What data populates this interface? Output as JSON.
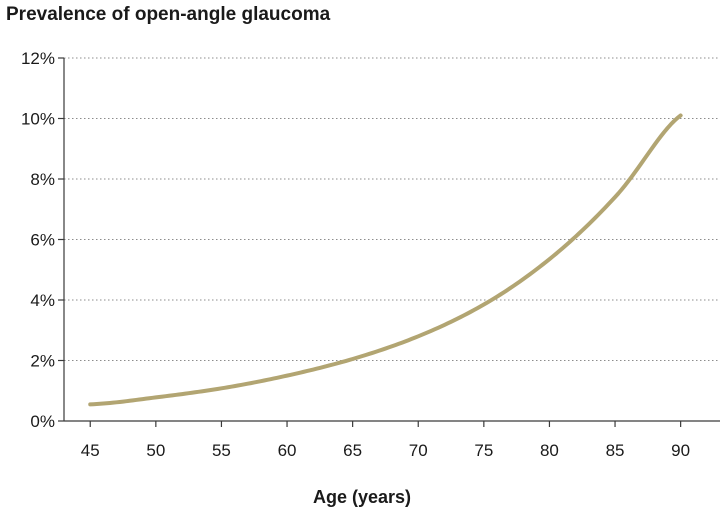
{
  "chart_data": {
    "type": "line",
    "title": "Prevalence of open-angle glaucoma",
    "xlabel": "Age (years)",
    "ylabel": "",
    "xlim": [
      43,
      93
    ],
    "ylim": [
      0,
      12
    ],
    "x_ticks": [
      45,
      50,
      55,
      60,
      65,
      70,
      75,
      80,
      85,
      90
    ],
    "y_ticks": [
      0,
      2,
      4,
      6,
      8,
      10,
      12
    ],
    "y_tick_labels": [
      "0%",
      "2%",
      "4%",
      "6%",
      "8%",
      "10%",
      "12%"
    ],
    "grid": "horizontal-dotted",
    "series": [
      {
        "x": [
          45,
          50,
          55,
          60,
          65,
          70,
          75,
          80,
          85,
          90
        ],
        "values": [
          0.55,
          0.78,
          1.08,
          1.5,
          2.05,
          2.8,
          3.85,
          5.35,
          7.4,
          10.1
        ],
        "color": "#b2a572"
      }
    ]
  }
}
